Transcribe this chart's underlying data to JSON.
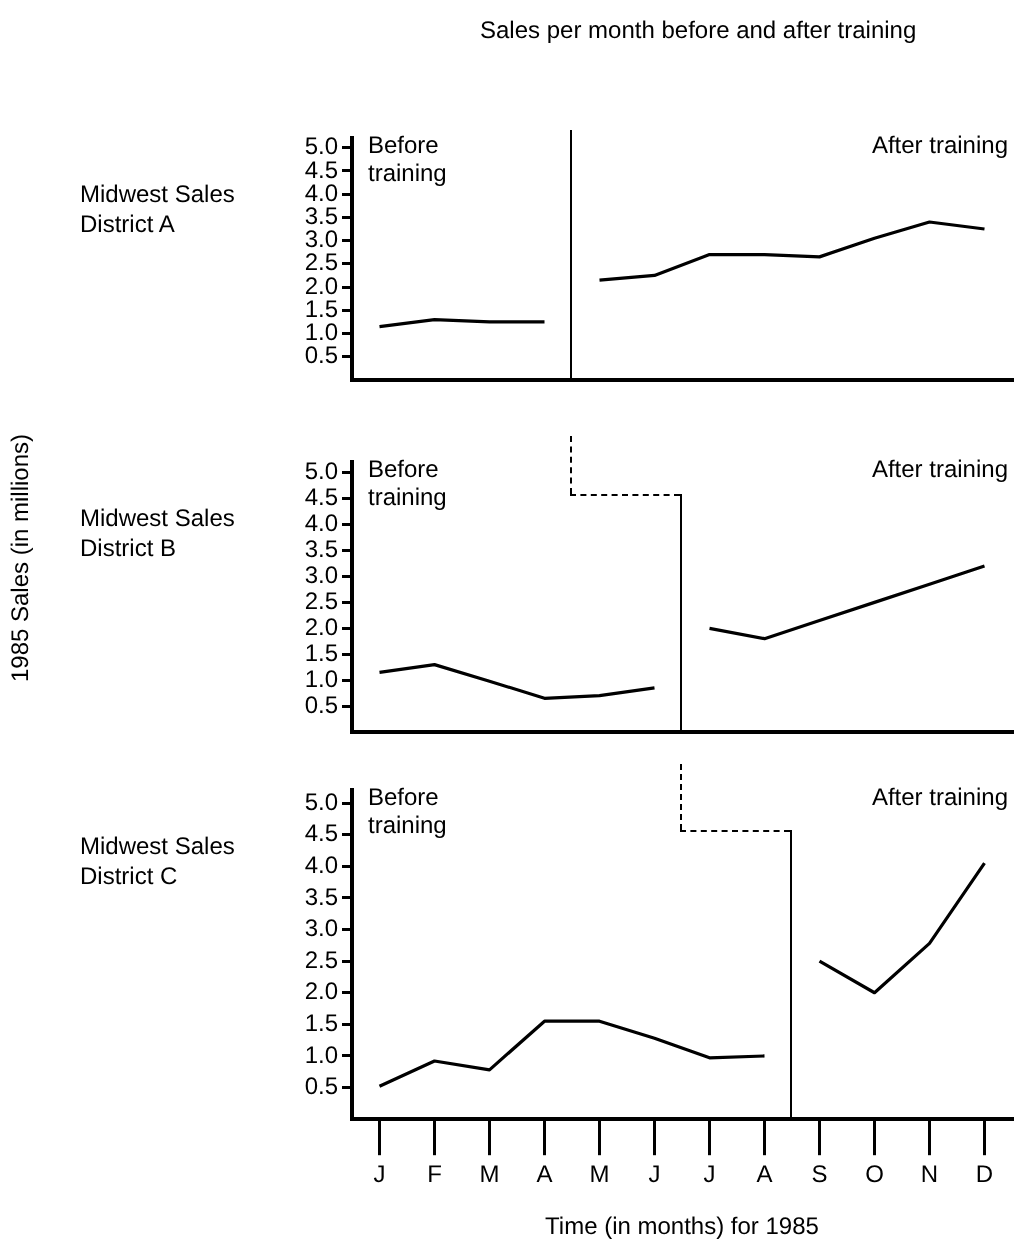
{
  "chart_data": [
    {
      "type": "line",
      "title": "Midwest Sales District A",
      "subtitle": "Sales per month before and after training",
      "annotations": [
        "Before training",
        "After training"
      ],
      "categories": [
        null,
        null,
        null,
        null,
        null,
        null,
        null,
        null,
        null,
        null,
        null,
        null
      ],
      "ylim": [
        0,
        5.2
      ],
      "yticks": [
        0.5,
        {
          "value": 1,
          "label": "1.0"
        },
        1.5,
        {
          "value": 2,
          "label": "2.0"
        },
        2.5,
        {
          "value": 3,
          "label": "3.0"
        },
        3.5,
        {
          "value": 4,
          "label": "4.0"
        },
        4.5,
        {
          "value": 5,
          "label": "5.0"
        }
      ],
      "tick_labels": "y",
      "marker": "none",
      "series": [
        {
          "color": "#000000",
          "values": [
            1.15,
            1.3,
            1.25,
            1.25,
            null,
            null,
            null,
            null,
            null,
            null,
            null,
            null
          ]
        },
        {
          "color": "#000000",
          "values": [
            null,
            null,
            null,
            null,
            2.15,
            2.25,
            2.7,
            2.7,
            2.65,
            3.05,
            3.4,
            3.25
          ]
        }
      ]
    },
    {
      "type": "line",
      "title": "Midwest Sales District B",
      "ylabel": "1985 Sales (in millions)",
      "annotations": [
        "Before training",
        "After training"
      ],
      "categories": [
        null,
        null,
        null,
        null,
        null,
        null,
        null,
        null,
        null,
        null,
        null,
        null
      ],
      "ylim": [
        0,
        5.2
      ],
      "yticks": [
        0.5,
        {
          "value": 1,
          "label": "1.0"
        },
        1.5,
        {
          "value": 2,
          "label": "2.0"
        },
        2.5,
        {
          "value": 3,
          "label": "3.0"
        },
        3.5,
        {
          "value": 4,
          "label": "4.0"
        },
        4.5,
        {
          "value": 5,
          "label": "5.0"
        }
      ],
      "tick_labels": "y",
      "marker": "none",
      "series": [
        {
          "color": "#000000",
          "values": [
            1.15,
            1.3,
            0.98,
            0.65,
            0.7,
            0.85,
            null,
            null,
            null,
            null,
            null,
            null
          ]
        },
        {
          "color": "#000000",
          "values": [
            null,
            null,
            null,
            null,
            null,
            null,
            2.0,
            1.8,
            2.15,
            2.5,
            2.85,
            3.2
          ]
        }
      ]
    },
    {
      "type": "line",
      "title": "Midwest Sales District C",
      "xlabel": "Time (in months) for 1985",
      "annotations": [
        "Before training",
        "After training"
      ],
      "categories": [
        "J",
        "F",
        "M",
        "A",
        "M",
        "J",
        "J",
        "A",
        "S",
        "O",
        "N",
        "D"
      ],
      "ylim": [
        0,
        5.2
      ],
      "yticks": [
        0.5,
        {
          "value": 1,
          "label": "1.0"
        },
        1.5,
        {
          "value": 2,
          "label": "2.0"
        },
        2.5,
        {
          "value": 3,
          "label": "3.0"
        },
        3.5,
        {
          "value": 4,
          "label": "4.0"
        },
        4.5,
        {
          "value": 5,
          "label": "5.0"
        }
      ],
      "marker": "none",
      "series": [
        {
          "color": "#000000",
          "values": [
            0.52,
            0.92,
            0.78,
            1.55,
            1.55,
            1.28,
            0.97,
            1.0,
            null,
            null,
            null,
            null
          ]
        },
        {
          "color": "#000000",
          "values": [
            null,
            null,
            null,
            null,
            null,
            null,
            null,
            null,
            2.5,
            2.0,
            2.78,
            4.05
          ]
        }
      ]
    }
  ]
}
